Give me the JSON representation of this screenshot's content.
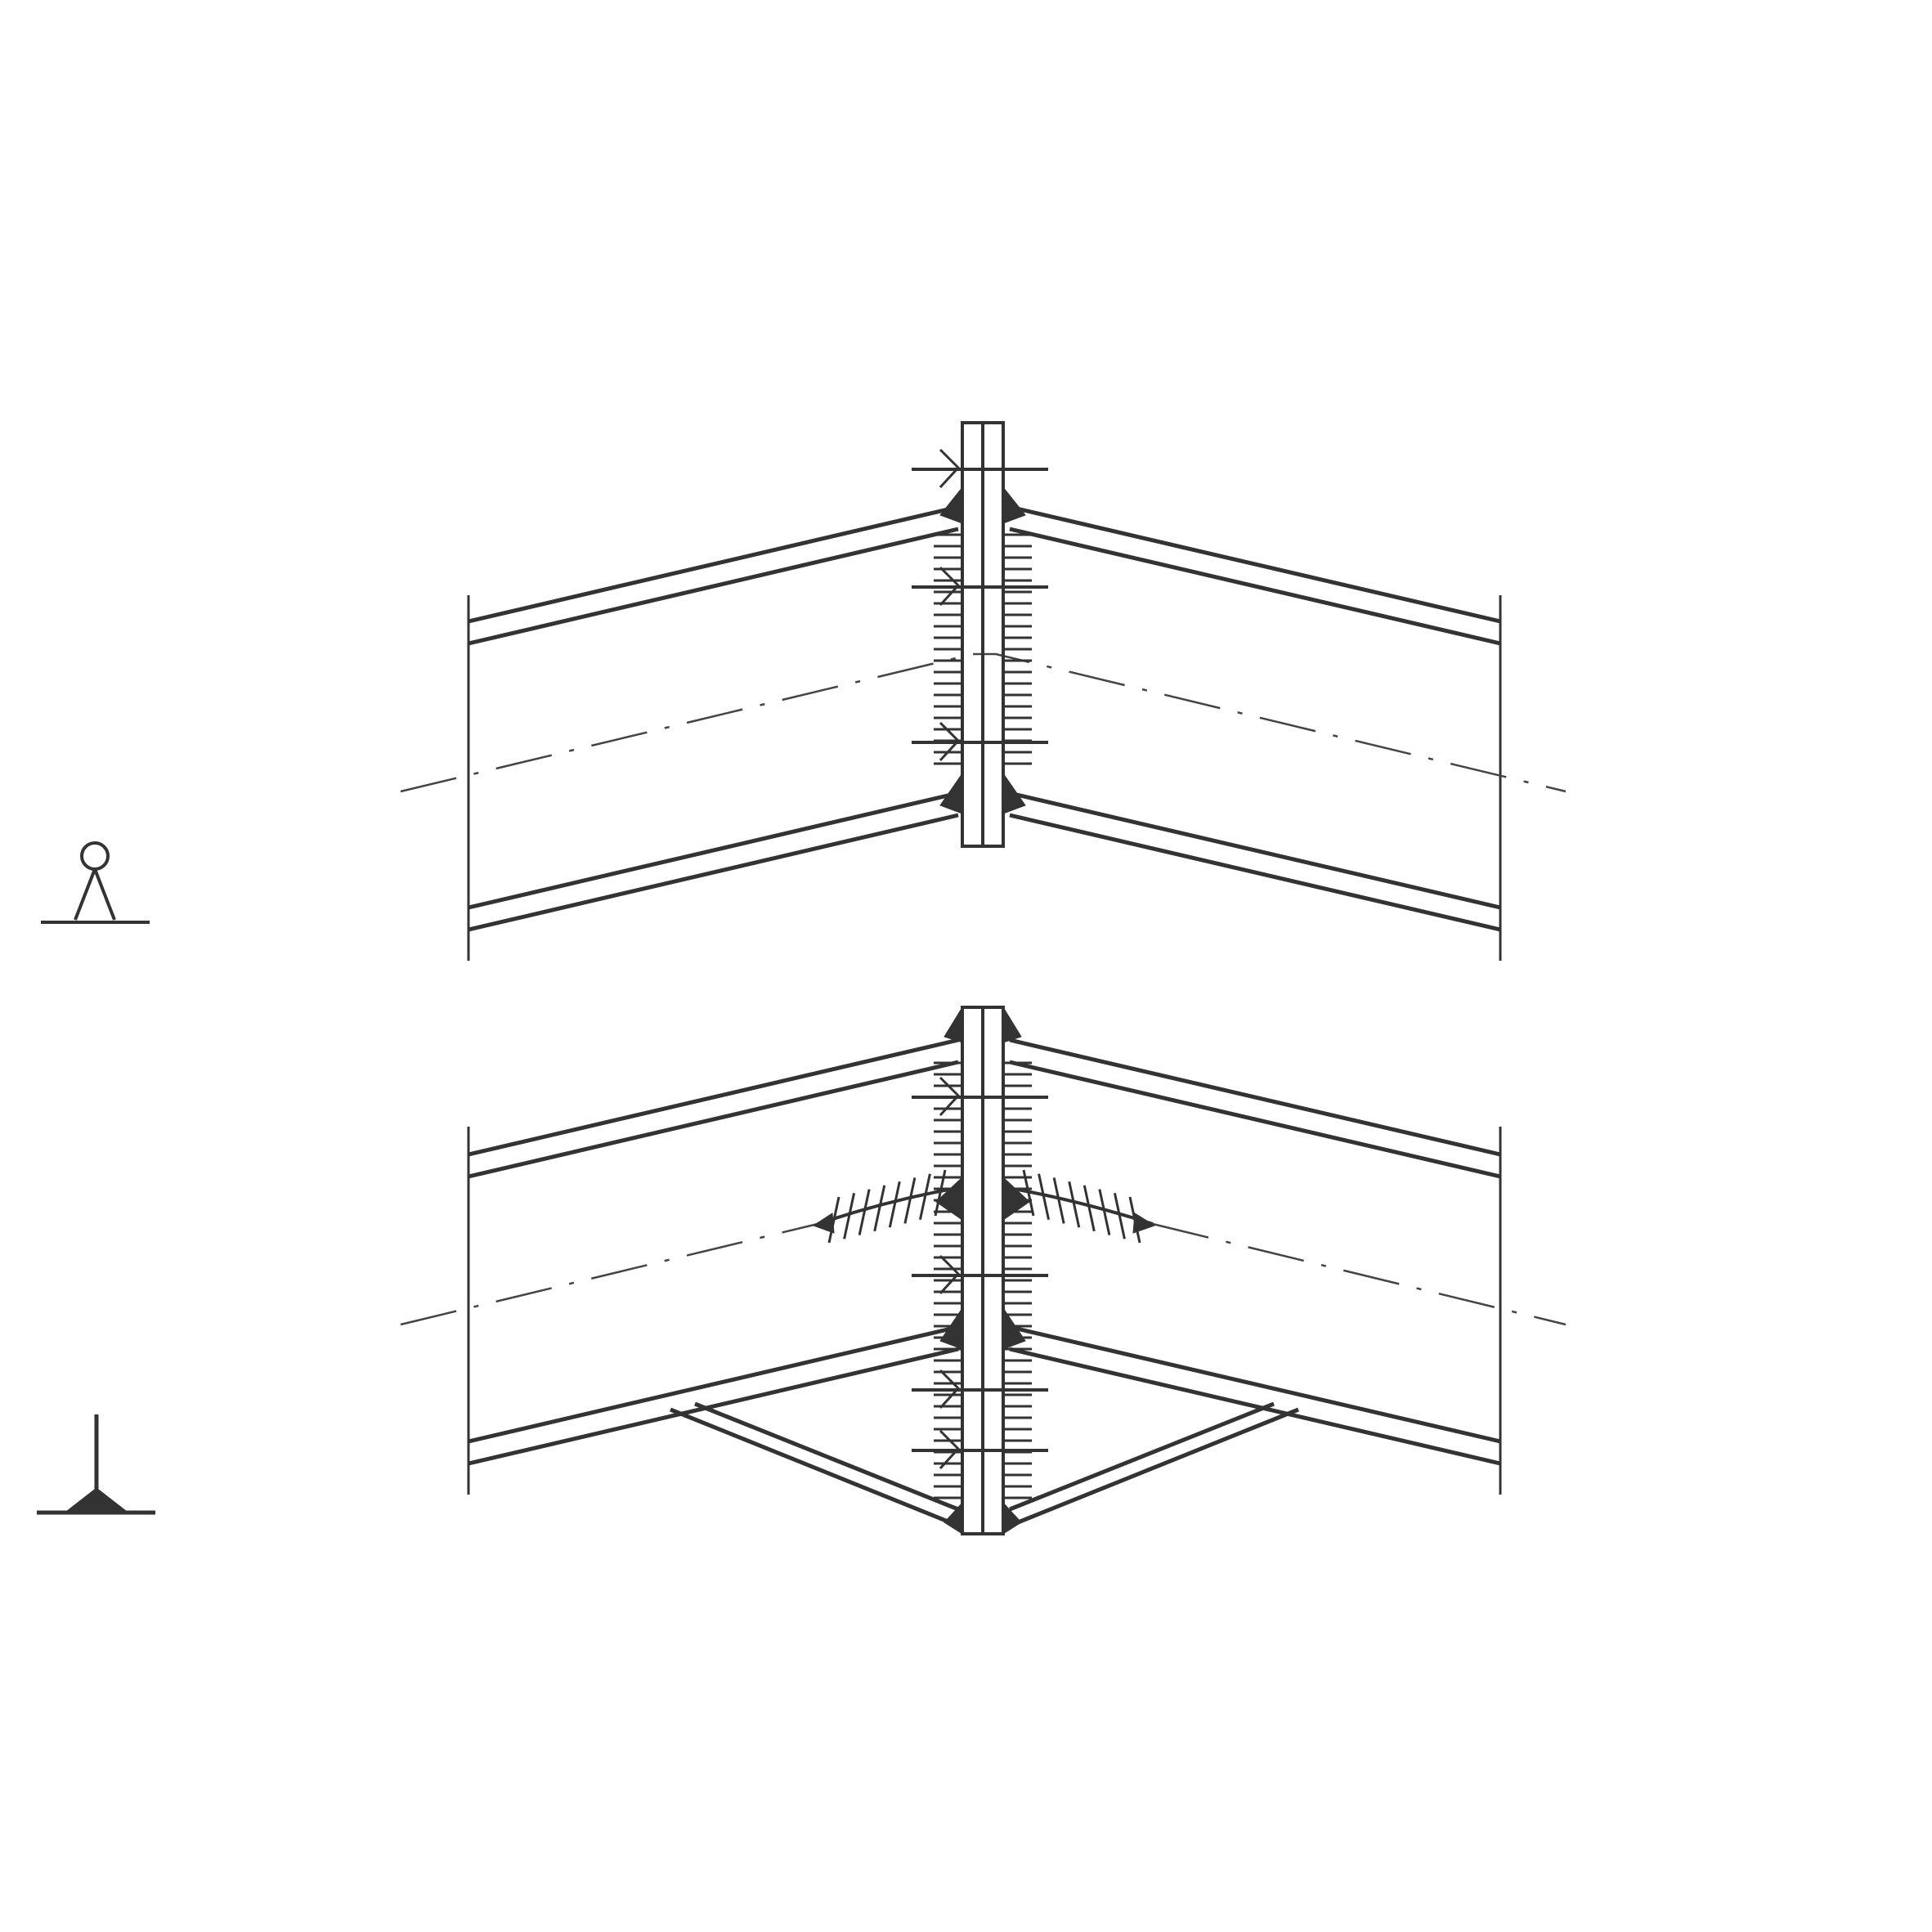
{
  "diagram": {
    "ink_color": "#333333",
    "background": "#ffffff",
    "views": [
      {
        "id": "upper",
        "symbol_icon": "person-standing-icon"
      },
      {
        "id": "lower",
        "symbol_icon": "fillet-weld-icon"
      }
    ]
  }
}
